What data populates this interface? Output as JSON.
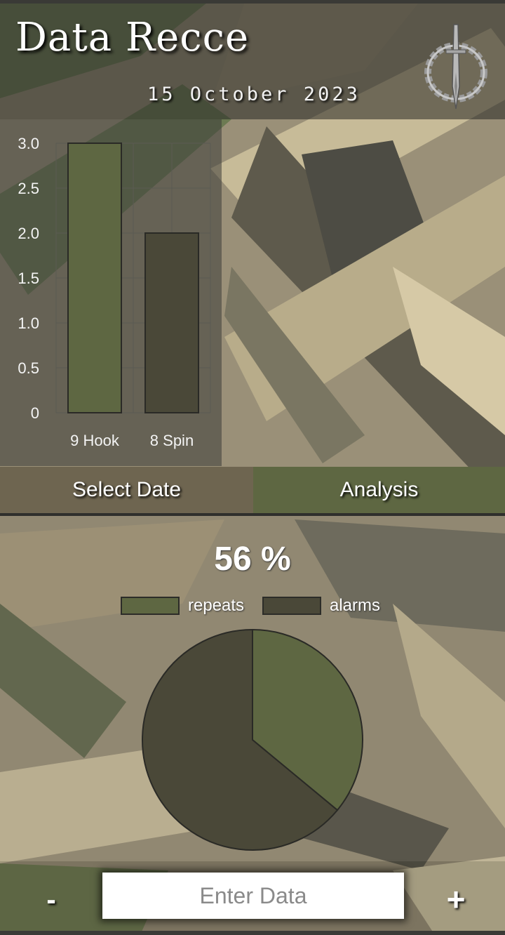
{
  "header": {
    "title": "Data Recce",
    "date": "15 October 2023",
    "emblem_icon": "dagger-laurel-emblem-icon"
  },
  "chart_data": [
    {
      "type": "bar",
      "categories": [
        "9 Hook",
        "8 Spin"
      ],
      "values": [
        3.0,
        2.0
      ],
      "ylim": [
        0,
        3.0
      ],
      "y_ticks": [
        "0",
        "0.5",
        "1.0",
        "1.5",
        "2.0",
        "2.5",
        "3.0"
      ],
      "grid": true,
      "colors": [
        "#5e6742",
        "#4a4838"
      ]
    },
    {
      "type": "pie",
      "labels": [
        "repeats",
        "alarms"
      ],
      "values": [
        36,
        64
      ],
      "colors": [
        "#5e6742",
        "#4a4838"
      ],
      "legend": "top"
    }
  ],
  "tabs": {
    "select_date": "Select Date",
    "analysis": "Analysis"
  },
  "analysis": {
    "percent": "56 %"
  },
  "input": {
    "placeholder": "Enter Data",
    "minus_label": "-",
    "plus_label": "+"
  },
  "colors": {
    "accent": "#5e6742",
    "secondary": "#4a4838"
  }
}
